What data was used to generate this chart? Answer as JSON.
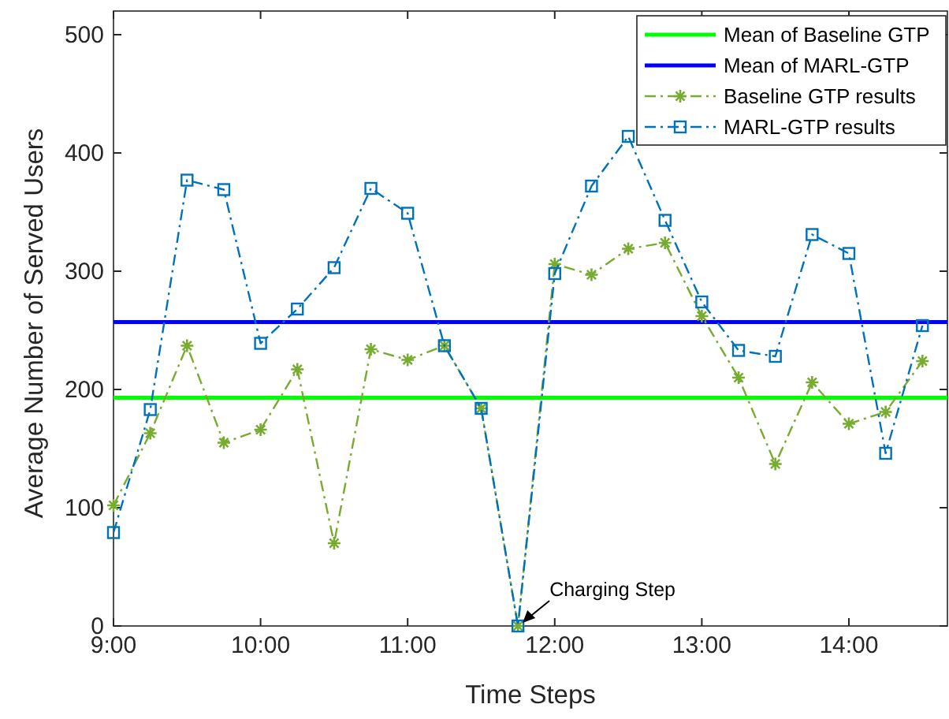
{
  "chart_data": {
    "type": "line",
    "xlabel": "Time Steps",
    "ylabel": "Average Number of Served Users",
    "x": [
      9,
      9.25,
      9.5,
      9.75,
      10,
      10.25,
      10.5,
      10.75,
      11,
      11.25,
      11.5,
      11.75,
      12,
      12.25,
      12.5,
      12.75,
      13,
      13.25,
      13.5,
      13.75,
      14,
      14.25,
      14.5
    ],
    "series": [
      {
        "name": "Baseline GTP results",
        "color": "#77ac30",
        "marker": "cross",
        "line_style": "dashed",
        "values": [
          102,
          163,
          237,
          155,
          166,
          217,
          70,
          234,
          225,
          237,
          184,
          0,
          306,
          297,
          319,
          324,
          262,
          210,
          137,
          206,
          171,
          181,
          224
        ]
      },
      {
        "name": "MARL-GTP results",
        "color": "#0072bd",
        "marker": "square",
        "line_style": "dashed",
        "values": [
          79,
          183,
          377,
          369,
          239,
          268,
          303,
          370,
          349,
          237,
          184,
          0,
          298,
          372,
          414,
          343,
          274,
          233,
          228,
          331,
          315,
          146,
          254
        ]
      }
    ],
    "ref_lines": [
      {
        "axis": "y",
        "value": 193,
        "label": "Mean of Baseline GTP",
        "color": "#00ff00"
      },
      {
        "axis": "y",
        "value": 257,
        "label": "Mean of MARL-GTP",
        "color": "#0000ff"
      }
    ],
    "annotations": [
      {
        "text": "Charging Step",
        "x": 11.75,
        "y": 0
      }
    ],
    "xlim": [
      9,
      14.67
    ],
    "ylim": [
      0,
      520
    ],
    "xticks": [
      {
        "value": 9,
        "label": "9:00"
      },
      {
        "value": 10,
        "label": "10:00"
      },
      {
        "value": 11,
        "label": "11:00"
      },
      {
        "value": 12,
        "label": "12:00"
      },
      {
        "value": 13,
        "label": "13:00"
      },
      {
        "value": 14,
        "label": "14:00"
      }
    ],
    "yticks": [
      0,
      100,
      200,
      300,
      400,
      500
    ],
    "grid": false,
    "legend": "top right"
  }
}
